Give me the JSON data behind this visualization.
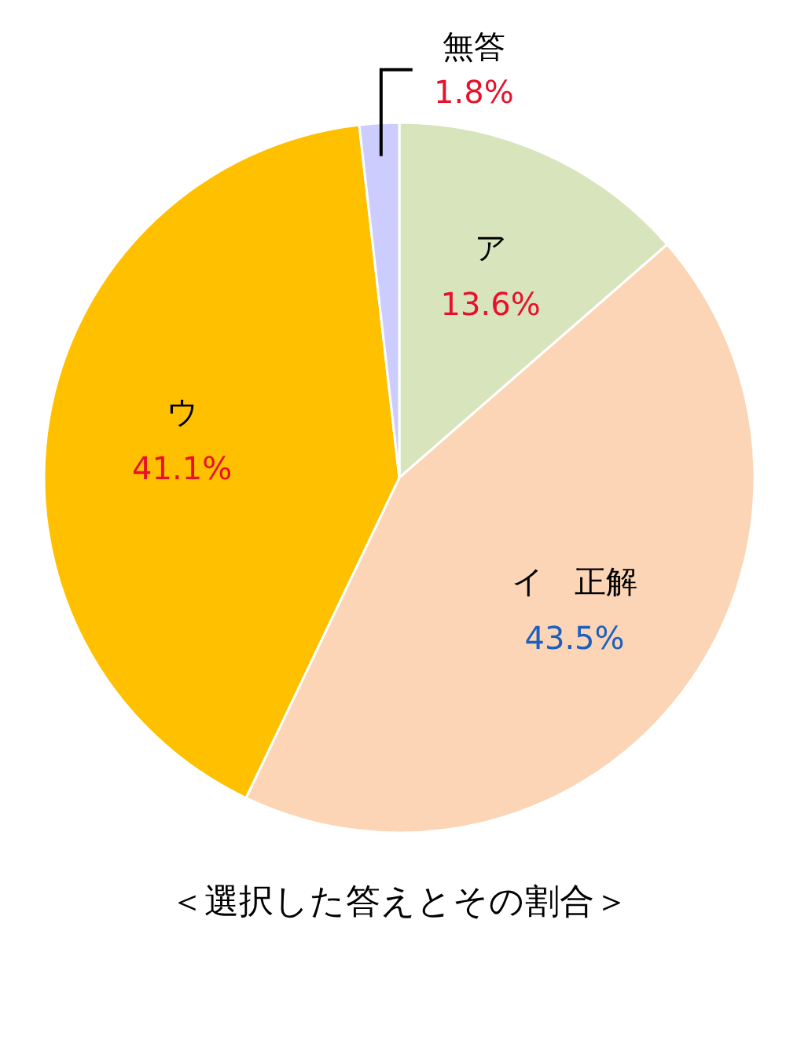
{
  "chart_data": {
    "type": "pie",
    "title": "＜選択した答えとその割合＞",
    "categories": [
      "ア",
      "イ　正解",
      "ウ",
      "無答"
    ],
    "values": [
      13.6,
      43.5,
      41.1,
      1.8
    ],
    "colors": [
      "#d8e4bc",
      "#fbd5b5",
      "#ffc000",
      "#ccccff"
    ],
    "value_labels": [
      "13.6%",
      "43.5%",
      "41.1%",
      "1.8%"
    ]
  }
}
